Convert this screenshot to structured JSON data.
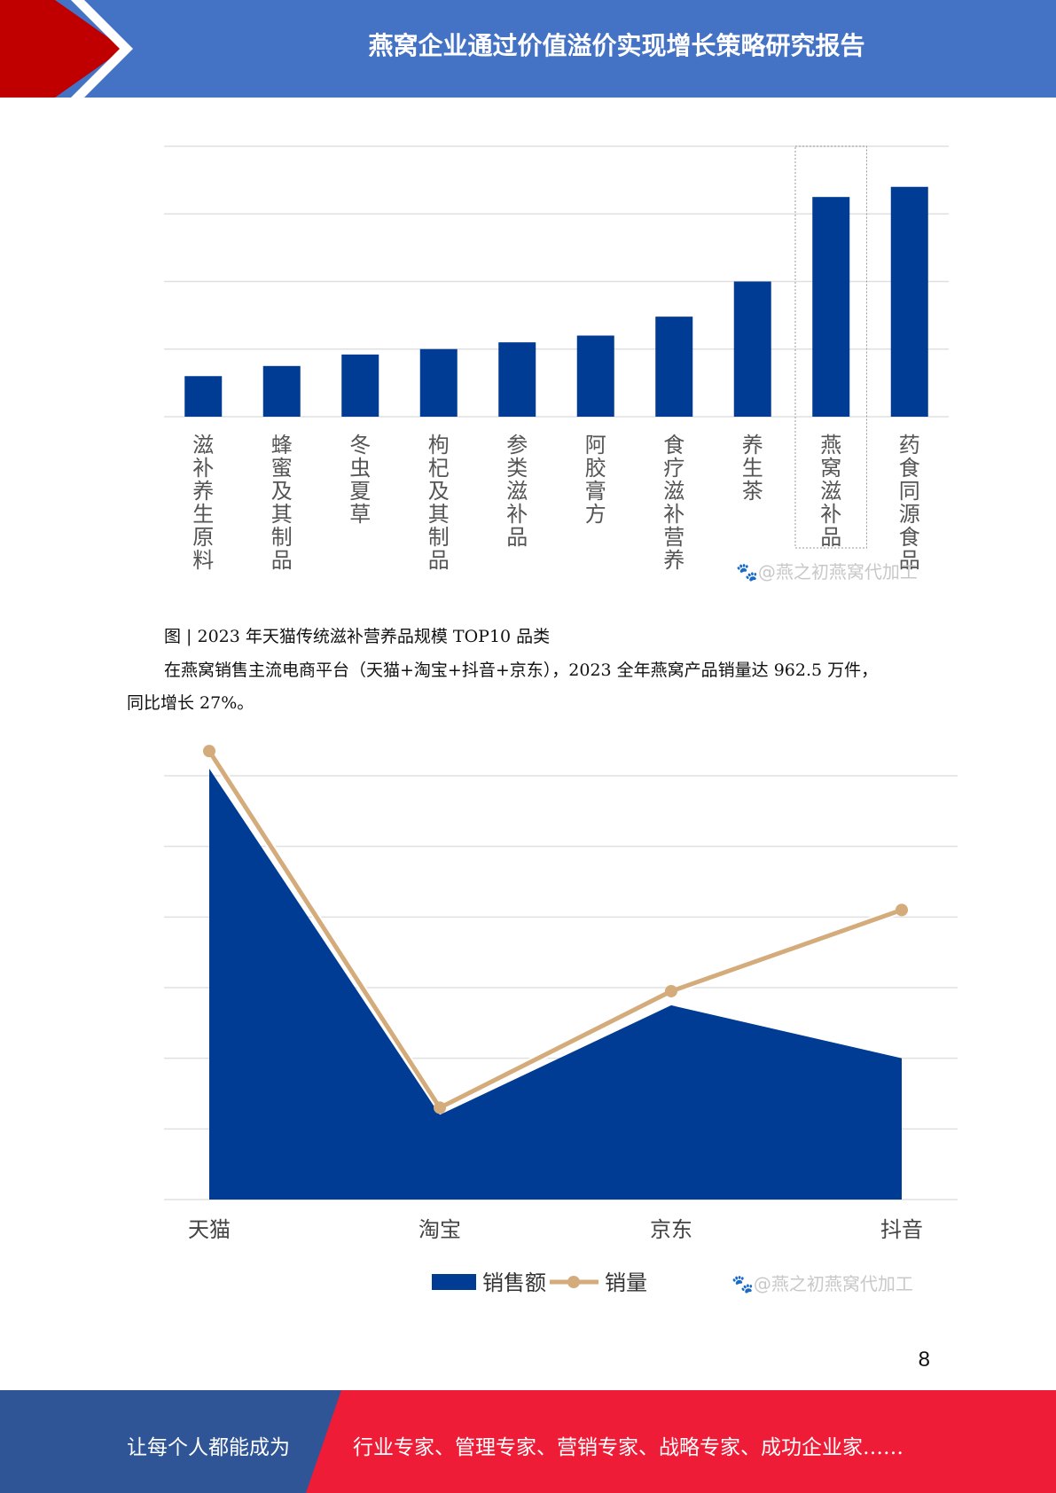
{
  "header": {
    "title": "燕窝企业通过价值溢价实现增长策略研究报告",
    "accent": "#C00000",
    "bg": "#4472C4"
  },
  "chart_data": [
    {
      "type": "bar",
      "title": "",
      "categories": [
        "滋补养生原料",
        "蜂蜜及其制品",
        "冬虫夏草",
        "枸杞及其制品",
        "参类滋补品",
        "阿胶膏方",
        "食疗滋补营养",
        "养生茶",
        "燕窝滋补品",
        "药食同源食品"
      ],
      "values": [
        0.6,
        0.75,
        0.92,
        1.0,
        1.1,
        1.2,
        1.48,
        2.0,
        3.25,
        3.4
      ],
      "ylim": [
        0,
        4
      ],
      "grid": true,
      "highlight": "燕窝滋补品",
      "color": "#003B94",
      "watermark": "@燕之初燕窝代加工"
    },
    {
      "type": "area",
      "categories": [
        "天猫",
        "淘宝",
        "京东",
        "抖音"
      ],
      "series": [
        {
          "name": "销售额",
          "type": "area",
          "color": "#003B94",
          "values": [
            6.1,
            1.2,
            2.75,
            2.0
          ]
        },
        {
          "name": "销量",
          "type": "line",
          "color": "#D4AB7A",
          "values": [
            6.35,
            1.3,
            2.95,
            4.1
          ]
        }
      ],
      "ylim": [
        0,
        6
      ],
      "grid": true,
      "legend": "bottom",
      "watermark": "@燕之初燕窝代加工"
    }
  ],
  "caption": "图  | 2023 年天猫传统滋补营养品规模 TOP10 品类",
  "paragraph": {
    "line1": "在燕窝销售主流电商平台（天猫+淘宝+抖音+京东），2023 全年燕窝产品销量达 962.5 万件，",
    "line2": "同比增长 27%。"
  },
  "page_number": "8",
  "footer": {
    "left": "让每个人都能成为",
    "right": "行业专家、管理专家、营销专家、战略专家、成功企业家……",
    "left_color": "#2F5597",
    "right_color": "#EE1C37"
  }
}
